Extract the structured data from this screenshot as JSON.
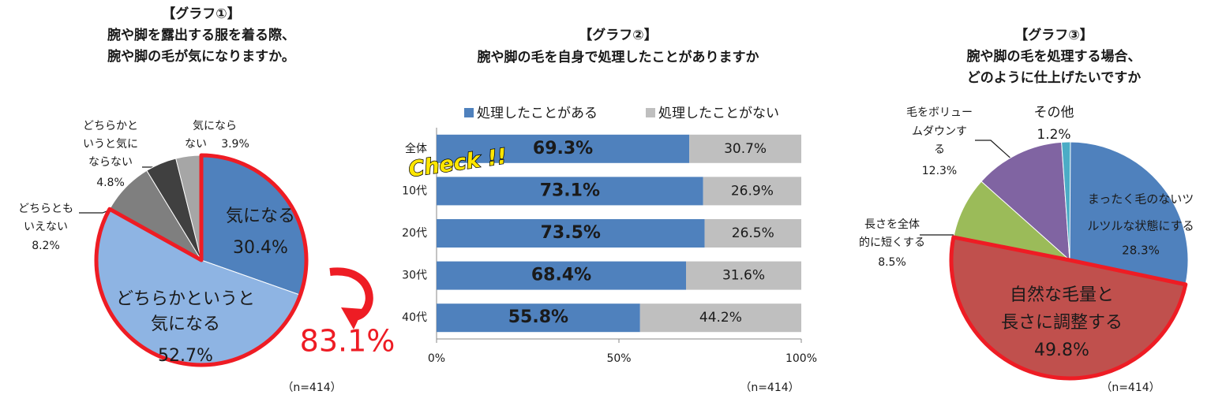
{
  "chart_data": [
    {
      "type": "pie",
      "heading": "【グラフ①】",
      "title": [
        "腕や脚を露出する服を着る際、",
        "腕や脚の毛が気になりますか。"
      ],
      "categories": [
        [
          "気になる"
        ],
        [
          "どちらかというと",
          "気になる"
        ],
        [
          "どちらとも",
          "いえない"
        ],
        [
          "どちらかと",
          "いうと気に",
          "ならない"
        ],
        [
          "気になら",
          "ない"
        ]
      ],
      "values": [
        30.4,
        52.7,
        8.2,
        4.8,
        3.9
      ],
      "value_labels": [
        "30.4%",
        "52.7%",
        "8.2%",
        "4.8%",
        "3.9%"
      ],
      "colors": [
        "#4f81bd",
        "#8eb4e3",
        "#7f7f7f",
        "#404040",
        "#a6a6a6"
      ],
      "annotation": "83.1%",
      "note": "（n=414）"
    },
    {
      "type": "stacked_barh",
      "heading": "【グラフ②】",
      "title": [
        "腕や脚の毛を自身で処理したことがありますか"
      ],
      "categories": [
        "全体",
        "10代",
        "20代",
        "30代",
        "40代"
      ],
      "series": [
        {
          "name": "処理したことがある",
          "color": "#4f81bd",
          "values": [
            69.3,
            73.1,
            73.5,
            68.4,
            55.8
          ],
          "value_labels": [
            "69.3%",
            "73.1%",
            "73.5%",
            "68.4%",
            "55.8%"
          ]
        },
        {
          "name": "処理したことがない",
          "color": "#bfbfbf",
          "values": [
            30.7,
            26.9,
            26.5,
            31.6,
            44.2
          ],
          "value_labels": [
            "30.7%",
            "26.9%",
            "26.5%",
            "31.6%",
            "44.2%"
          ]
        }
      ],
      "xlim": [
        0,
        100
      ],
      "xticks": [
        {
          "value": 0,
          "label": "0%"
        },
        {
          "value": 50,
          "label": "50%"
        },
        {
          "value": 100,
          "label": "100%"
        }
      ],
      "annotation": "Check !!",
      "note": "（n=414）"
    },
    {
      "type": "pie",
      "heading": "【グラフ③】",
      "title": [
        "腕や脚の毛を処理する場合、",
        "どのように仕上げたいですか"
      ],
      "categories": [
        [
          "まったく毛のないツ",
          "ルツルな状態にする"
        ],
        [
          "自然な毛量と",
          "長さに調整する"
        ],
        [
          "長さを全体",
          "的に短くする"
        ],
        [
          "毛をボリュー",
          "ムダウンす",
          "る"
        ],
        [
          "その他"
        ]
      ],
      "values": [
        28.3,
        49.8,
        8.5,
        12.3,
        1.2
      ],
      "value_labels": [
        "28.3%",
        "49.8%",
        "8.5%",
        "12.3%",
        "1.2%"
      ],
      "colors": [
        "#4f81bd",
        "#c0504d",
        "#9bbb59",
        "#8064a2",
        "#4bacc6"
      ],
      "note": "（n=414）"
    }
  ]
}
